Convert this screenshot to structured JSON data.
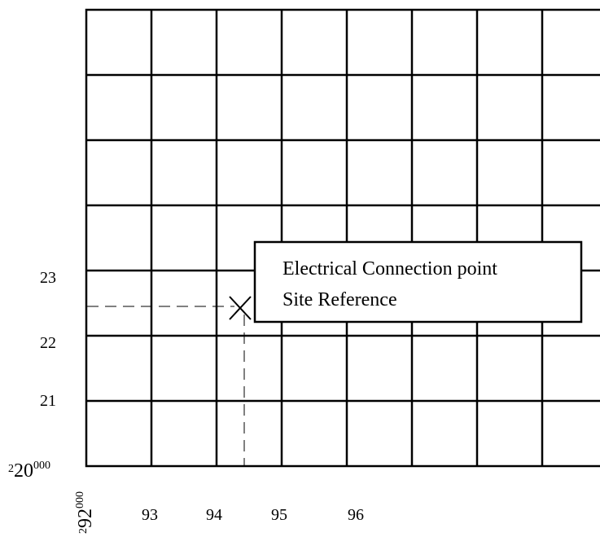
{
  "grid": {
    "y_labels": [
      "23",
      "22",
      "21"
    ],
    "x_labels": [
      "93",
      "94",
      "95",
      "96"
    ],
    "origin_y": {
      "prefix": "2",
      "main": "20",
      "suffix": "000"
    },
    "origin_x": {
      "prefix": "2",
      "main": "92",
      "suffix": "000"
    }
  },
  "callout": {
    "line1": "Electrical Connection point",
    "line2": "Site Reference"
  }
}
